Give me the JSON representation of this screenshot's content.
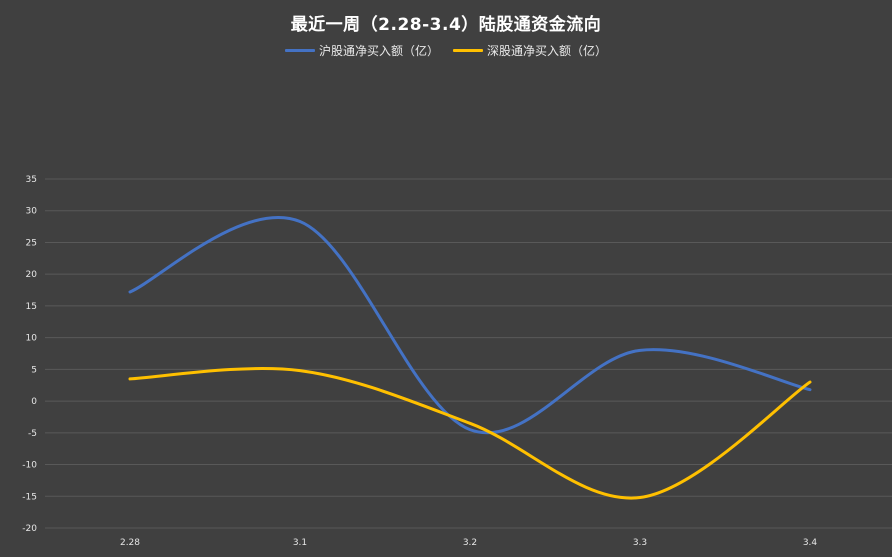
{
  "chart_data": {
    "type": "line",
    "title": "最近一周（2.28-3.4）陆股通资金流向",
    "categories": [
      "2.28",
      "3.1",
      "3.2",
      "3.3",
      "3.4"
    ],
    "series": [
      {
        "name": "沪股通净买入额（亿）",
        "color": "#4472C4",
        "values": [
          17.2,
          28.3,
          -4.5,
          8.0,
          1.8
        ]
      },
      {
        "name": "深股通净买入额（亿）",
        "color": "#FFC000",
        "values": [
          3.5,
          4.8,
          -3.5,
          -15.2,
          3.0
        ]
      }
    ],
    "ylim": [
      -20,
      35
    ],
    "yticks": [
      35,
      30,
      25,
      20,
      15,
      10,
      5,
      0,
      -5,
      -10,
      -15,
      -20
    ],
    "grid": true,
    "legend": "top",
    "colors": {
      "background": "#404040",
      "grid": "#595959"
    }
  }
}
